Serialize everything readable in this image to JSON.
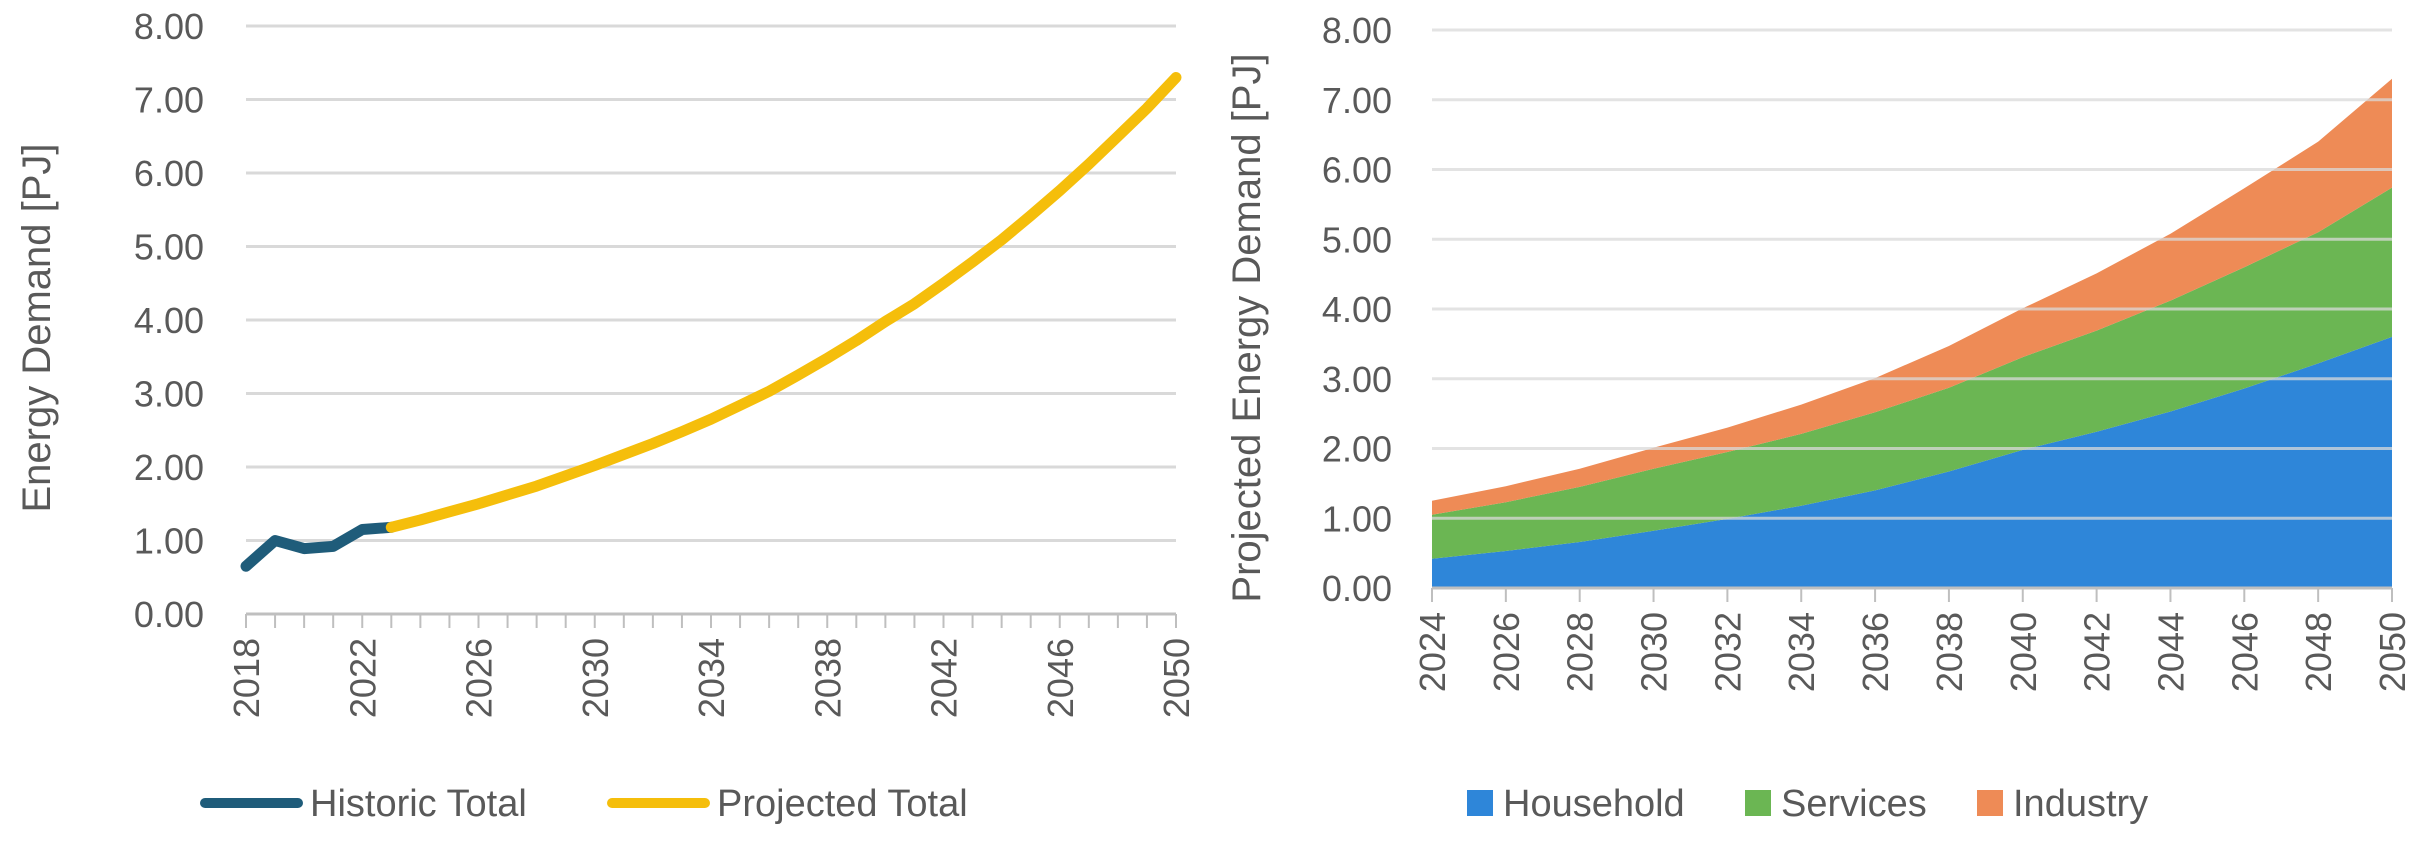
{
  "chart_data": [
    {
      "type": "line",
      "title": "",
      "ylabel": "Energy Demand [PJ]",
      "ylim": [
        0,
        8
      ],
      "ytick_step": 1,
      "y_tick_decimals": 2,
      "xlim": [
        2018,
        2050
      ],
      "x_tick_labels": [
        "2018",
        "2022",
        "2026",
        "2030",
        "2034",
        "2038",
        "2042",
        "2046",
        "2050"
      ],
      "grid": true,
      "legend_position": "bottom",
      "series": [
        {
          "name": "Historic Total",
          "color": "#1F5C7A",
          "x": [
            2018,
            2019,
            2020,
            2021,
            2022,
            2023
          ],
          "y": [
            0.65,
            1.0,
            0.89,
            0.92,
            1.15,
            1.18
          ]
        },
        {
          "name": "Projected Total",
          "color": "#F5BE0B",
          "x": [
            2023,
            2024,
            2025,
            2026,
            2027,
            2028,
            2029,
            2030,
            2031,
            2032,
            2033,
            2034,
            2035,
            2036,
            2037,
            2038,
            2039,
            2040,
            2041,
            2042,
            2043,
            2044,
            2045,
            2046,
            2047,
            2048,
            2049,
            2050
          ],
          "y": [
            1.18,
            1.28,
            1.39,
            1.5,
            1.62,
            1.74,
            1.88,
            2.02,
            2.17,
            2.32,
            2.48,
            2.65,
            2.84,
            3.03,
            3.25,
            3.48,
            3.72,
            3.98,
            4.22,
            4.5,
            4.79,
            5.09,
            5.42,
            5.76,
            6.12,
            6.5,
            6.88,
            7.3
          ]
        }
      ]
    },
    {
      "type": "area",
      "stacked": true,
      "title": "",
      "ylabel": "Projected Energy Demand [PJ]",
      "ylim": [
        0,
        8
      ],
      "ytick_step": 1,
      "y_tick_decimals": 2,
      "x": [
        2024,
        2026,
        2028,
        2030,
        2032,
        2034,
        2036,
        2038,
        2040,
        2042,
        2044,
        2046,
        2048,
        2050
      ],
      "grid": true,
      "legend_position": "bottom",
      "series": [
        {
          "name": "Household",
          "color": "#2E86D9",
          "values": [
            0.42,
            0.53,
            0.66,
            0.82,
            0.99,
            1.18,
            1.4,
            1.67,
            1.98,
            2.24,
            2.53,
            2.86,
            3.22,
            3.6
          ]
        },
        {
          "name": "Services",
          "color": "#6BB653",
          "values": [
            0.63,
            0.7,
            0.79,
            0.89,
            0.96,
            1.03,
            1.12,
            1.2,
            1.33,
            1.45,
            1.59,
            1.74,
            1.88,
            2.14
          ]
        },
        {
          "name": "Industry",
          "color": "#EE8B56",
          "values": [
            0.2,
            0.23,
            0.26,
            0.3,
            0.35,
            0.42,
            0.49,
            0.6,
            0.7,
            0.82,
            0.96,
            1.13,
            1.3,
            1.56
          ]
        }
      ]
    }
  ]
}
